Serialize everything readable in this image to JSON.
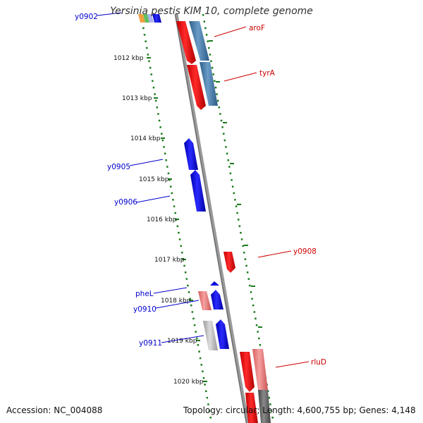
{
  "title": "Yersinia pestis KIM 10, complete genome",
  "footer": {
    "accession": "Accession: NC_004088",
    "topology": "Topology: circular; Length: 4,600,755 bp; Genes: 4,148"
  },
  "kbp_labels": [
    "1012 kbp",
    "1013 kbp",
    "1014 kbp",
    "1015 kbp",
    "1016 kbp",
    "1017 kbp",
    "1018 kbp",
    "1019 kbp",
    "1020 kbp"
  ],
  "gene_labels": {
    "y0902": "y0902",
    "aroF": "aroF",
    "tyrA": "tyrA",
    "y0905": "y0905",
    "y0906": "y0906",
    "y0908": "y0908",
    "pheL": "pheL",
    "y0910": "y0910",
    "y0911": "y0911",
    "rluD": "rluD"
  },
  "colors": {
    "forward_strand": "#0000ee",
    "reverse_strand": "#ee0000",
    "backbone": "#888888",
    "tick_marks": "#1a7a1a"
  }
}
